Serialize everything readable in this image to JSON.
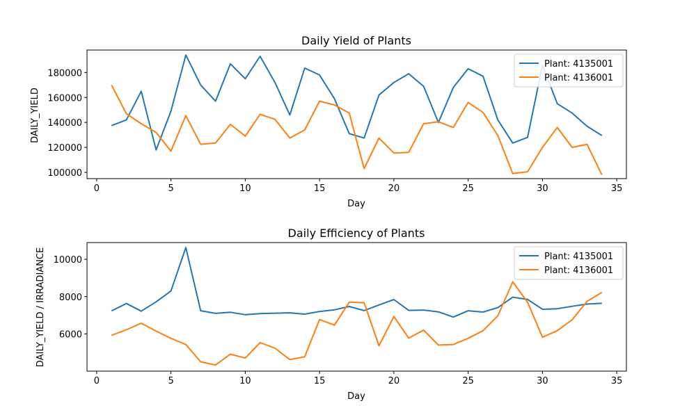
{
  "chart_data": [
    {
      "type": "line",
      "title": "Daily Yield of Plants",
      "xlabel": "Day",
      "ylabel": "DAILY_YIELD",
      "xlim": [
        -0.65,
        35.65
      ],
      "ylim": [
        95000,
        198000
      ],
      "xticks": [
        0,
        5,
        10,
        15,
        20,
        25,
        30,
        35
      ],
      "yticks": [
        100000,
        120000,
        140000,
        160000,
        180000
      ],
      "legend": "top-right",
      "grid": false,
      "x": [
        1,
        2,
        3,
        4,
        5,
        6,
        7,
        8,
        9,
        10,
        11,
        12,
        13,
        14,
        15,
        16,
        17,
        18,
        19,
        20,
        21,
        22,
        23,
        24,
        25,
        26,
        27,
        28,
        29,
        30,
        31,
        32,
        33,
        34
      ],
      "series": [
        {
          "name": "Plant: 4135001",
          "color": "#1f77b4",
          "values": [
            137500,
            142000,
            165000,
            118000,
            149000,
            194000,
            170000,
            157000,
            187000,
            175000,
            193000,
            172000,
            146000,
            183500,
            178000,
            159000,
            131000,
            127500,
            162000,
            172000,
            179000,
            169000,
            140000,
            168000,
            183000,
            177000,
            142000,
            123500,
            128000,
            186000,
            155000,
            147500,
            137000,
            129500
          ]
        },
        {
          "name": "Plant: 4136001",
          "color": "#ff7f0e",
          "values": [
            170000,
            147000,
            139000,
            132000,
            117000,
            145500,
            122500,
            123500,
            138500,
            129000,
            146500,
            142500,
            127500,
            134000,
            157000,
            154000,
            147500,
            103000,
            127500,
            115500,
            116000,
            139000,
            140500,
            136000,
            156000,
            148000,
            129500,
            99000,
            100500,
            120000,
            136000,
            120000,
            122500,
            98000
          ]
        }
      ]
    },
    {
      "type": "line",
      "title": "Daily Efficiency of Plants",
      "xlabel": "Day",
      "ylabel": "DAILY_YIELD / IRRADIANCE",
      "xlim": [
        -0.65,
        35.65
      ],
      "ylim": [
        4000,
        10900
      ],
      "xticks": [
        0,
        5,
        10,
        15,
        20,
        25,
        30,
        35
      ],
      "yticks": [
        6000,
        8000,
        10000
      ],
      "legend": "top-right",
      "grid": false,
      "x": [
        1,
        2,
        3,
        4,
        5,
        6,
        7,
        8,
        9,
        10,
        11,
        12,
        13,
        14,
        15,
        16,
        17,
        18,
        19,
        20,
        21,
        22,
        23,
        24,
        25,
        26,
        27,
        28,
        29,
        30,
        31,
        32,
        33,
        34
      ],
      "series": [
        {
          "name": "Plant: 4135001",
          "color": "#1f77b4",
          "values": [
            7230,
            7630,
            7220,
            7720,
            8300,
            10630,
            7240,
            7100,
            7160,
            7030,
            7090,
            7110,
            7130,
            7060,
            7200,
            7290,
            7470,
            7250,
            7550,
            7840,
            7260,
            7280,
            7180,
            6900,
            7240,
            7170,
            7410,
            7970,
            7850,
            7320,
            7350,
            7480,
            7600,
            7640
          ]
        },
        {
          "name": "Plant: 4136001",
          "color": "#ff7f0e",
          "values": [
            5920,
            6220,
            6570,
            6150,
            5760,
            5430,
            4500,
            4330,
            4910,
            4700,
            5530,
            5230,
            4620,
            4770,
            6770,
            6470,
            7700,
            7670,
            5360,
            6930,
            5770,
            6200,
            5400,
            5430,
            5760,
            6170,
            6970,
            8790,
            7700,
            5820,
            6170,
            6760,
            7740,
            8230
          ]
        }
      ]
    }
  ]
}
